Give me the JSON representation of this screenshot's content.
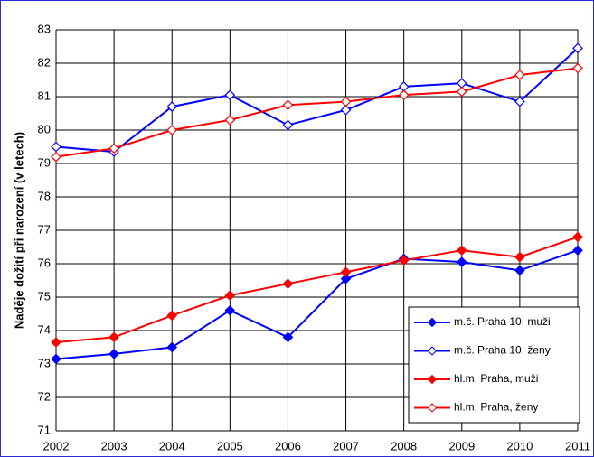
{
  "chart_data": {
    "type": "line",
    "y_label": "Naděje dožití při narození (v letech)",
    "x": [
      2002,
      2003,
      2004,
      2005,
      2006,
      2007,
      2008,
      2009,
      2010,
      2011
    ],
    "xlim": [
      2002,
      2011
    ],
    "xticks": [
      2002,
      2003,
      2004,
      2005,
      2006,
      2007,
      2008,
      2009,
      2010,
      2011
    ],
    "ylim": [
      71,
      83
    ],
    "yticks": [
      71,
      72,
      73,
      74,
      75,
      76,
      77,
      78,
      79,
      80,
      81,
      82,
      83
    ],
    "grid": true,
    "legend": "lower right",
    "series": [
      {
        "name": "m.č. Praha 10, muži",
        "color": "#0000ff",
        "marker": "filled",
        "values": [
          73.15,
          73.3,
          73.5,
          74.6,
          73.8,
          75.55,
          76.15,
          76.05,
          75.8,
          76.4
        ]
      },
      {
        "name": "m.č. Praha 10, ženy",
        "color": "#0000ff",
        "marker": "open",
        "values": [
          79.5,
          79.35,
          80.7,
          81.05,
          80.15,
          80.6,
          81.3,
          81.4,
          80.85,
          82.45
        ]
      },
      {
        "name": "hl.m. Praha, muži",
        "color": "#ff0000",
        "marker": "filled",
        "values": [
          73.65,
          73.8,
          74.45,
          75.05,
          75.4,
          75.75,
          76.1,
          76.4,
          76.2,
          76.8
        ]
      },
      {
        "name": "hl.m. Praha, ženy",
        "color": "#ff0000",
        "marker": "open",
        "values": [
          79.2,
          79.45,
          80.0,
          80.3,
          80.75,
          80.85,
          81.05,
          81.15,
          81.65,
          81.85
        ]
      }
    ]
  }
}
